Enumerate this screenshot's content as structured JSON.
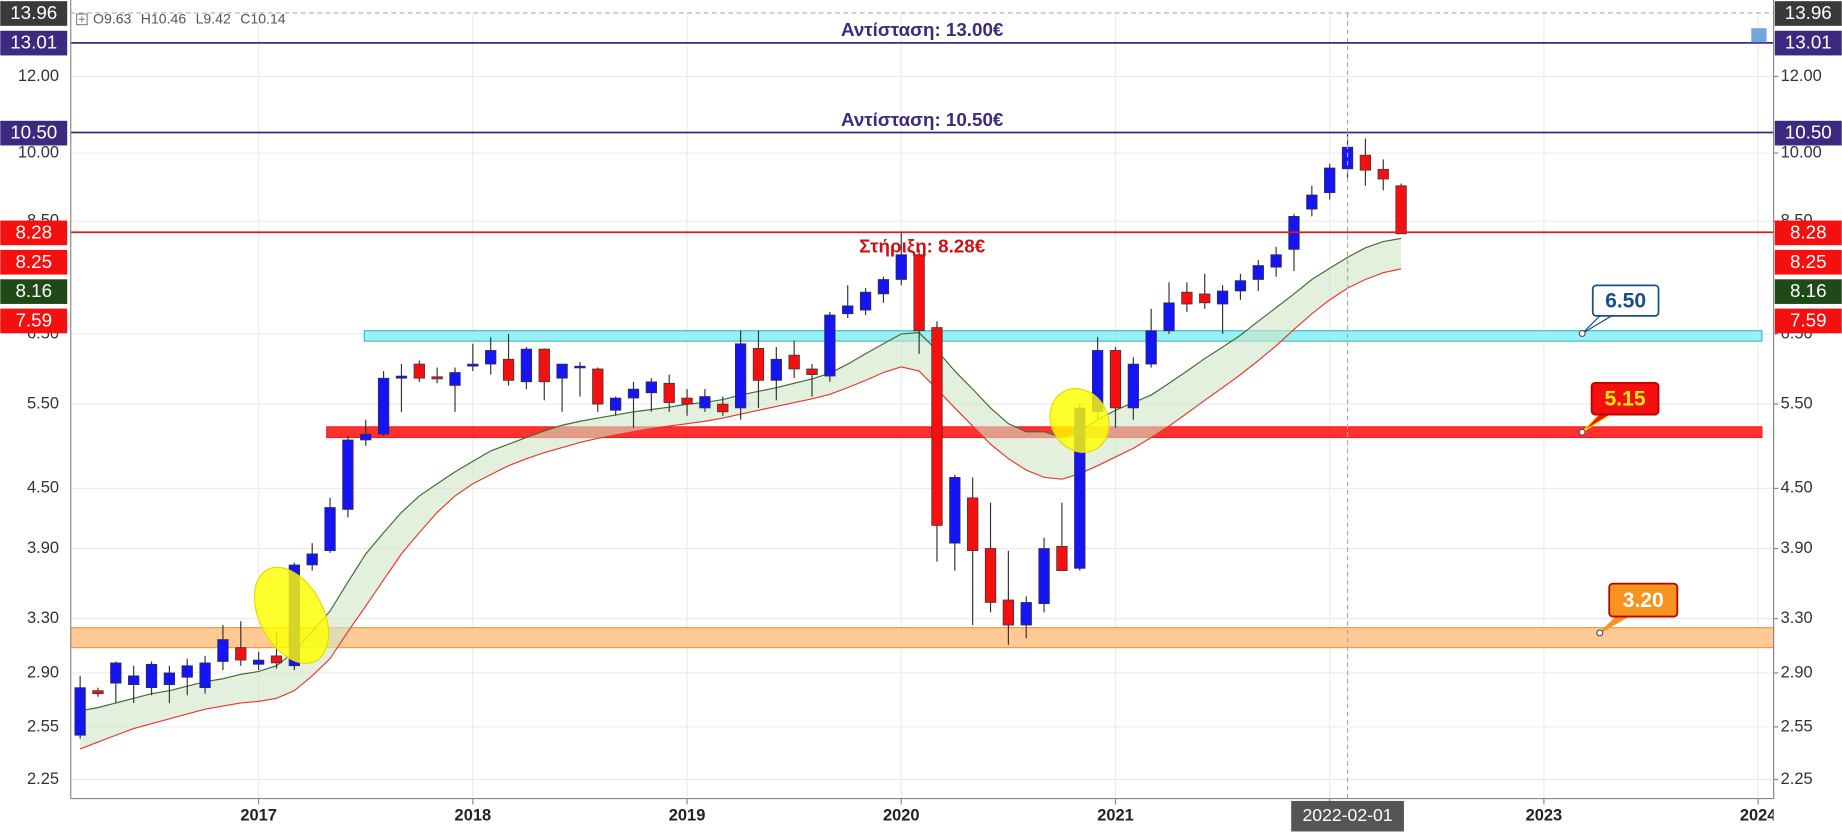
{
  "chart_data": {
    "type": "candlestick",
    "categories": [
      "2016-03",
      "2016-04",
      "2016-05",
      "2016-06",
      "2016-07",
      "2016-08",
      "2016-09",
      "2016-10",
      "2016-11",
      "2016-12",
      "2017-01",
      "2017-02",
      "2017-03",
      "2017-04",
      "2017-05",
      "2017-06",
      "2017-07",
      "2017-08",
      "2017-09",
      "2017-10",
      "2017-11",
      "2017-12",
      "2018-01",
      "2018-02",
      "2018-03",
      "2018-04",
      "2018-05",
      "2018-06",
      "2018-07",
      "2018-08",
      "2018-09",
      "2018-10",
      "2018-11",
      "2018-12",
      "2019-01",
      "2019-02",
      "2019-03",
      "2019-04",
      "2019-05",
      "2019-06",
      "2019-07",
      "2019-08",
      "2019-09",
      "2019-10",
      "2019-11",
      "2019-12",
      "2020-01",
      "2020-02",
      "2020-03",
      "2020-04",
      "2020-05",
      "2020-06",
      "2020-07",
      "2020-08",
      "2020-09",
      "2020-10",
      "2020-11",
      "2020-12",
      "2021-01",
      "2021-02",
      "2021-03",
      "2021-04",
      "2021-05",
      "2021-06",
      "2021-07",
      "2021-08",
      "2021-09",
      "2021-10",
      "2021-11",
      "2021-12",
      "2022-01",
      "2022-02",
      "2022-03",
      "2022-04",
      "2022-05"
    ],
    "open": [
      2.5,
      2.78,
      2.83,
      2.82,
      2.8,
      2.82,
      2.87,
      2.8,
      2.98,
      3.08,
      2.96,
      3.02,
      2.95,
      3.75,
      3.88,
      4.28,
      5.05,
      5.12,
      5.85,
      6.05,
      5.87,
      5.75,
      6.02,
      6.05,
      6.12,
      5.8,
      6.27,
      5.85,
      6.0,
      5.98,
      5.42,
      5.58,
      5.65,
      5.78,
      5.58,
      5.45,
      5.5,
      5.45,
      6.28,
      5.82,
      6.18,
      5.98,
      5.88,
      6.82,
      6.88,
      7.15,
      7.4,
      7.85,
      6.6,
      3.95,
      4.4,
      3.9,
      3.45,
      3.25,
      3.42,
      3.92,
      3.72,
      5.4,
      6.25,
      5.45,
      6.05,
      6.55,
      7.18,
      7.15,
      6.98,
      7.2,
      7.4,
      7.62,
      7.95,
      8.75,
      9.1,
      9.63,
      9.95,
      9.62,
      9.25
    ],
    "high": [
      2.88,
      2.8,
      2.98,
      2.95,
      2.98,
      2.95,
      3.0,
      3.02,
      3.25,
      3.28,
      3.05,
      3.2,
      3.77,
      3.95,
      4.4,
      5.1,
      5.3,
      5.95,
      6.05,
      6.1,
      6.0,
      6.0,
      6.35,
      6.45,
      6.5,
      6.3,
      6.28,
      6.05,
      6.08,
      6.0,
      5.6,
      5.8,
      5.85,
      5.9,
      5.7,
      5.7,
      5.6,
      6.55,
      6.55,
      6.3,
      6.4,
      6.05,
      6.85,
      7.3,
      7.25,
      7.45,
      8.28,
      7.95,
      6.7,
      4.65,
      4.62,
      4.35,
      3.88,
      3.48,
      4.0,
      4.35,
      5.5,
      6.45,
      6.3,
      6.15,
      6.9,
      7.35,
      7.35,
      7.5,
      7.3,
      7.5,
      7.75,
      8.0,
      8.65,
      9.25,
      9.75,
      10.46,
      10.35,
      9.85,
      9.3
    ],
    "low": [
      2.48,
      2.74,
      2.7,
      2.7,
      2.75,
      2.7,
      2.75,
      2.76,
      2.92,
      2.95,
      2.92,
      2.93,
      2.92,
      3.7,
      3.86,
      4.2,
      4.98,
      5.1,
      5.4,
      5.8,
      5.78,
      5.4,
      5.95,
      5.9,
      5.75,
      5.7,
      5.55,
      5.4,
      5.6,
      5.4,
      5.35,
      5.2,
      5.4,
      5.4,
      5.35,
      5.4,
      5.35,
      5.3,
      5.45,
      5.55,
      5.85,
      5.6,
      5.8,
      6.75,
      6.8,
      7.0,
      7.3,
      6.2,
      3.78,
      3.7,
      3.25,
      3.35,
      3.1,
      3.15,
      3.35,
      3.7,
      3.7,
      5.3,
      5.2,
      5.3,
      6.0,
      6.5,
      6.85,
      6.9,
      6.5,
      7.05,
      7.2,
      7.45,
      7.55,
      8.6,
      8.95,
      9.42,
      9.25,
      9.15,
      8.25
    ],
    "close": [
      2.8,
      2.76,
      2.97,
      2.88,
      2.96,
      2.9,
      2.95,
      2.97,
      3.14,
      2.99,
      2.99,
      2.97,
      3.75,
      3.85,
      4.3,
      5.05,
      5.12,
      5.85,
      5.88,
      5.85,
      5.84,
      5.93,
      6.05,
      6.25,
      5.82,
      6.27,
      5.8,
      6.05,
      6.02,
      5.5,
      5.58,
      5.7,
      5.8,
      5.52,
      5.5,
      5.6,
      5.4,
      6.35,
      5.82,
      6.12,
      5.98,
      5.9,
      6.8,
      6.95,
      7.18,
      7.4,
      7.85,
      6.55,
      4.12,
      4.62,
      3.88,
      3.43,
      3.25,
      3.43,
      3.9,
      3.7,
      5.45,
      6.25,
      5.45,
      6.05,
      6.55,
      7.0,
      6.98,
      7.0,
      7.2,
      7.38,
      7.65,
      7.85,
      8.6,
      9.05,
      9.65,
      10.14,
      9.6,
      9.4,
      8.25
    ],
    "up_color": "#1414f5",
    "down_color": "#f51010",
    "bands": {
      "fill": "#cfe6c6",
      "upper": {
        "color": "#3f6e35",
        "values": [
          2.65,
          2.67,
          2.7,
          2.73,
          2.76,
          2.78,
          2.81,
          2.84,
          2.86,
          2.89,
          2.91,
          2.95,
          3.05,
          3.2,
          3.36,
          3.6,
          3.85,
          4.05,
          4.25,
          4.42,
          4.55,
          4.68,
          4.8,
          4.92,
          5.0,
          5.08,
          5.16,
          5.23,
          5.28,
          5.32,
          5.36,
          5.4,
          5.43,
          5.46,
          5.5,
          5.52,
          5.56,
          5.62,
          5.67,
          5.72,
          5.78,
          5.84,
          5.92,
          6.05,
          6.2,
          6.35,
          6.5,
          6.52,
          6.25,
          5.95,
          5.7,
          5.45,
          5.25,
          5.15,
          5.15,
          5.08,
          5.15,
          5.3,
          5.42,
          5.52,
          5.62,
          5.78,
          5.95,
          6.13,
          6.3,
          6.48,
          6.7,
          6.92,
          7.15,
          7.4,
          7.6,
          7.8,
          7.98,
          8.1,
          8.16
        ]
      },
      "lower": {
        "color": "#e53a2e",
        "values": [
          2.42,
          2.46,
          2.5,
          2.54,
          2.57,
          2.6,
          2.63,
          2.66,
          2.68,
          2.7,
          2.71,
          2.73,
          2.78,
          2.88,
          3.0,
          3.2,
          3.4,
          3.62,
          3.85,
          4.05,
          4.25,
          4.42,
          4.55,
          4.65,
          4.75,
          4.83,
          4.9,
          4.96,
          5.02,
          5.07,
          5.11,
          5.15,
          5.19,
          5.22,
          5.25,
          5.28,
          5.32,
          5.37,
          5.42,
          5.47,
          5.52,
          5.57,
          5.63,
          5.72,
          5.82,
          5.93,
          6.01,
          5.95,
          5.7,
          5.45,
          5.22,
          5.0,
          4.83,
          4.7,
          4.62,
          4.6,
          4.66,
          4.75,
          4.85,
          4.95,
          5.08,
          5.22,
          5.38,
          5.55,
          5.72,
          5.9,
          6.1,
          6.32,
          6.57,
          6.82,
          7.05,
          7.25,
          7.4,
          7.52,
          7.59
        ]
      }
    },
    "log_scale": true,
    "grid": true,
    "ylim": [
      2.15,
      13.96
    ],
    "yticks": [
      {
        "value": 2.25,
        "label": "2.25"
      },
      {
        "value": 2.55,
        "label": "2.55"
      },
      {
        "value": 2.9,
        "label": "2.90"
      },
      {
        "value": 3.3,
        "label": "3.30"
      },
      {
        "value": 3.9,
        "label": "3.90"
      },
      {
        "value": 4.5,
        "label": "4.50"
      },
      {
        "value": 5.5,
        "label": "5.50"
      },
      {
        "value": 6.5,
        "label": "6.50"
      },
      {
        "value": 8.5,
        "label": "8.50"
      },
      {
        "value": 10,
        "label": "10.00"
      },
      {
        "value": 12,
        "label": "12.00"
      }
    ],
    "xticks": [
      {
        "value": "2017-01",
        "label": "2017"
      },
      {
        "value": "2018-01",
        "label": "2018"
      },
      {
        "value": "2019-01",
        "label": "2019"
      },
      {
        "value": "2020-01",
        "label": "2020"
      },
      {
        "value": "2021-01",
        "label": "2021"
      },
      {
        "value": "2022-01",
        "label": "2022"
      },
      {
        "value": "2023-01",
        "label": "2023"
      },
      {
        "value": "2024-01",
        "label": "2024"
      }
    ],
    "levels": [
      {
        "value": 13.0,
        "label": "Αντίσταση: 13.00€",
        "color": "#3d2a80",
        "text_color": "#3d2a80"
      },
      {
        "value": 10.5,
        "label": "Αντίσταση: 10.50€",
        "color": "#3d2a80",
        "text_color": "#3d2a80"
      },
      {
        "value": 8.28,
        "label": "Στήριξη: 8.28€",
        "color": "#e81818",
        "text_color": "#d01010"
      }
    ],
    "zones": [
      {
        "low": 3.08,
        "high": 3.23,
        "label": "3.20",
        "color": "#ffc48a",
        "edge": "#f39c3a",
        "box_color": "#f7931e",
        "text_color": "#ffffff"
      },
      {
        "low": 6.39,
        "high": 6.55,
        "label": "6.50",
        "color": "#8ef0f7",
        "edge": "#3fb8c8",
        "box_color": "#ffffff",
        "text_color": "#1a4f8a"
      },
      {
        "low": 5.08,
        "high": 5.21,
        "label": "5.15",
        "color": "#ff1a1a",
        "edge": "#ff1a1a",
        "box_color": "#f51010",
        "text_color": "#ffee00"
      }
    ],
    "price_labels": [
      {
        "value": 13.96,
        "label": "13.96",
        "color": "#3a3a3a"
      },
      {
        "value": 13.01,
        "label": "13.01",
        "color": "#3d2a80"
      },
      {
        "value": 10.5,
        "label": "10.50",
        "color": "#3d2a80"
      },
      {
        "value": 8.28,
        "label": "8.28",
        "color": "#f51010"
      },
      {
        "value": 8.25,
        "label": "8.25",
        "color": "#f51010"
      },
      {
        "value": 8.16,
        "label": "8.16",
        "color": "#1f4a17"
      },
      {
        "value": 7.59,
        "label": "7.59",
        "color": "#f51010"
      }
    ],
    "ohlc_legend": [
      "O9.63",
      "H10.46",
      "L9.42",
      "C10.14"
    ],
    "crosshair_label": "2022-02-01"
  }
}
